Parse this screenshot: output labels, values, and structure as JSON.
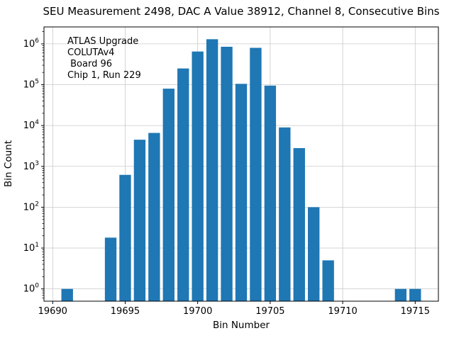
{
  "chart_data": {
    "type": "bar",
    "title": "SEU Measurement 2498, DAC A Value 38912, Channel 8, Consecutive Bins",
    "xlabel": "Bin Number",
    "ylabel": "Bin Count",
    "annotation": [
      "ATLAS Upgrade",
      "COLUTAv4",
      " Board 96",
      "Chip 1, Run 229"
    ],
    "yscale": "log",
    "grid": true,
    "bar_color": "#1f77b4",
    "grid_color": "#c9c9c9",
    "xlim": [
      19689.4,
      19716.6
    ],
    "ylim": [
      0.5,
      2600000
    ],
    "x_ticks": [
      19690,
      19695,
      19700,
      19705,
      19710,
      19715
    ],
    "y_tick_exponents": [
      0,
      1,
      2,
      3,
      4,
      5,
      6
    ],
    "bar_width": 0.8,
    "bins": [
      19691,
      19694,
      19695,
      19696,
      19697,
      19698,
      19699,
      19700,
      19701,
      19702,
      19703,
      19704,
      19705,
      19706,
      19707,
      19708,
      19709,
      19714,
      19715
    ],
    "counts": [
      1,
      18,
      620,
      4500,
      6600,
      80000,
      250000,
      650000,
      1300000,
      850000,
      105000,
      800000,
      95000,
      9000,
      2800,
      100,
      5,
      1,
      1
    ]
  }
}
